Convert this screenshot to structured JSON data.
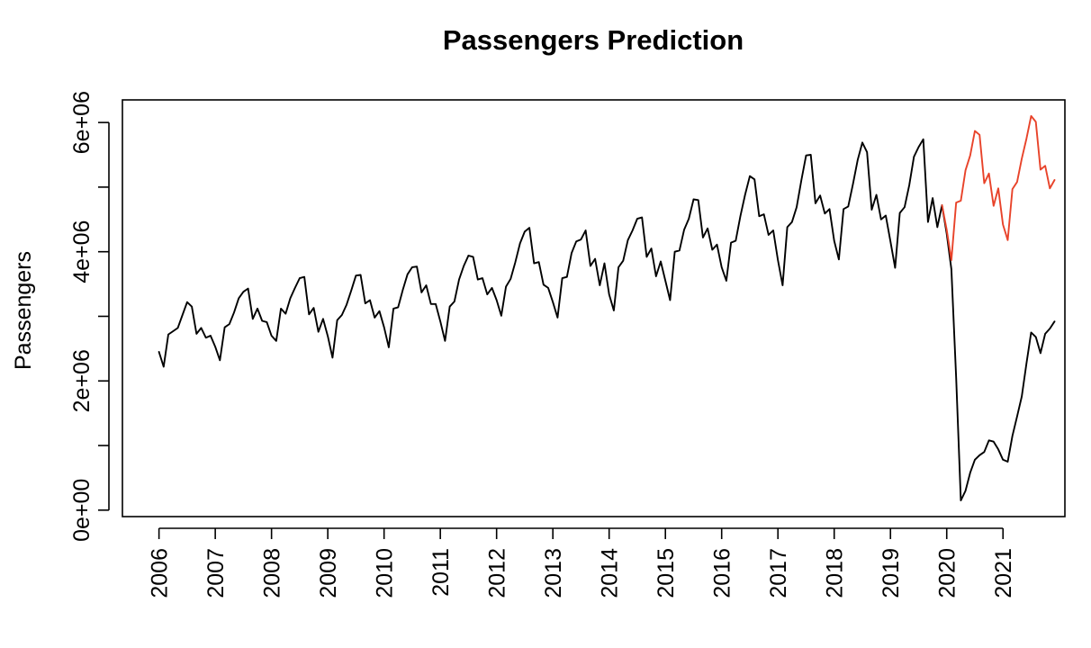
{
  "chart_data": {
    "type": "line",
    "title": "Passengers Prediction",
    "xlabel": "",
    "ylabel": "Passengers",
    "xlim": [
      2005.35,
      2022.1
    ],
    "ylim": [
      -100000,
      6350000
    ],
    "grid": false,
    "x_ticks": [
      {
        "value": 2006,
        "label": "2006"
      },
      {
        "value": 2007,
        "label": "2007"
      },
      {
        "value": 2008,
        "label": "2008"
      },
      {
        "value": 2009,
        "label": "2009"
      },
      {
        "value": 2010,
        "label": "2010"
      },
      {
        "value": 2011,
        "label": "2011"
      },
      {
        "value": 2012,
        "label": "2012"
      },
      {
        "value": 2013,
        "label": "2013"
      },
      {
        "value": 2014,
        "label": "2014"
      },
      {
        "value": 2015,
        "label": "2015"
      },
      {
        "value": 2016,
        "label": "2016"
      },
      {
        "value": 2017,
        "label": "2017"
      },
      {
        "value": 2018,
        "label": "2018"
      },
      {
        "value": 2019,
        "label": "2019"
      },
      {
        "value": 2020,
        "label": "2020"
      },
      {
        "value": 2021,
        "label": "2021"
      }
    ],
    "y_ticks": [
      {
        "value": 0,
        "label": "0e+00"
      },
      {
        "value": 1000000,
        "label": ""
      },
      {
        "value": 2000000,
        "label": "2e+06"
      },
      {
        "value": 3000000,
        "label": ""
      },
      {
        "value": 4000000,
        "label": "4e+06"
      },
      {
        "value": 5000000,
        "label": ""
      },
      {
        "value": 6000000,
        "label": "6e+06"
      }
    ],
    "series": [
      {
        "color": "#000000",
        "x_start": 2006,
        "step": 0.0833333,
        "values": [
          2450000,
          2220000,
          2720000,
          2770000,
          2820000,
          3020000,
          3220000,
          3150000,
          2730000,
          2820000,
          2670000,
          2700000,
          2530000,
          2320000,
          2830000,
          2880000,
          3060000,
          3280000,
          3380000,
          3430000,
          2960000,
          3120000,
          2930000,
          2910000,
          2700000,
          2620000,
          3120000,
          3040000,
          3280000,
          3440000,
          3590000,
          3610000,
          3030000,
          3130000,
          2760000,
          2960000,
          2690000,
          2360000,
          2940000,
          3020000,
          3180000,
          3400000,
          3630000,
          3640000,
          3200000,
          3250000,
          2980000,
          3080000,
          2830000,
          2520000,
          3120000,
          3140000,
          3410000,
          3650000,
          3760000,
          3770000,
          3370000,
          3480000,
          3190000,
          3190000,
          2920000,
          2620000,
          3150000,
          3230000,
          3570000,
          3780000,
          3940000,
          3920000,
          3570000,
          3590000,
          3340000,
          3440000,
          3250000,
          3010000,
          3460000,
          3580000,
          3840000,
          4130000,
          4310000,
          4370000,
          3820000,
          3840000,
          3490000,
          3440000,
          3220000,
          2980000,
          3590000,
          3610000,
          3980000,
          4160000,
          4190000,
          4330000,
          3780000,
          3890000,
          3480000,
          3820000,
          3340000,
          3090000,
          3760000,
          3860000,
          4180000,
          4330000,
          4510000,
          4530000,
          3920000,
          4050000,
          3620000,
          3850000,
          3550000,
          3250000,
          4000000,
          4020000,
          4340000,
          4510000,
          4810000,
          4800000,
          4220000,
          4360000,
          4030000,
          4110000,
          3760000,
          3550000,
          4140000,
          4170000,
          4550000,
          4880000,
          5170000,
          5120000,
          4550000,
          4580000,
          4260000,
          4330000,
          3870000,
          3480000,
          4380000,
          4460000,
          4690000,
          5110000,
          5490000,
          5500000,
          4750000,
          4870000,
          4590000,
          4660000,
          4170000,
          3880000,
          4660000,
          4700000,
          5050000,
          5420000,
          5690000,
          5540000,
          4650000,
          4880000,
          4500000,
          4560000,
          4160000,
          3750000,
          4600000,
          4690000,
          5030000,
          5470000,
          5620000,
          5740000,
          4460000,
          4830000,
          4380000,
          4720000,
          4280000,
          3730000,
          2050000,
          150000,
          300000,
          580000,
          780000,
          850000,
          900000,
          1080000,
          1060000,
          940000,
          780000,
          750000,
          1150000,
          1450000,
          1760000,
          2270000,
          2750000,
          2680000,
          2430000,
          2730000,
          2810000,
          2920000
        ]
      },
      {
        "color": "#e8432a",
        "x_start": 2019.9167,
        "step": 0.0833333,
        "values": [
          4720000,
          4340000,
          3870000,
          4760000,
          4790000,
          5260000,
          5490000,
          5870000,
          5810000,
          5060000,
          5210000,
          4710000,
          4980000,
          4420000,
          4180000,
          4970000,
          5080000,
          5440000,
          5750000,
          6100000,
          6010000,
          5270000,
          5330000,
          4980000,
          5110000
        ]
      }
    ]
  }
}
